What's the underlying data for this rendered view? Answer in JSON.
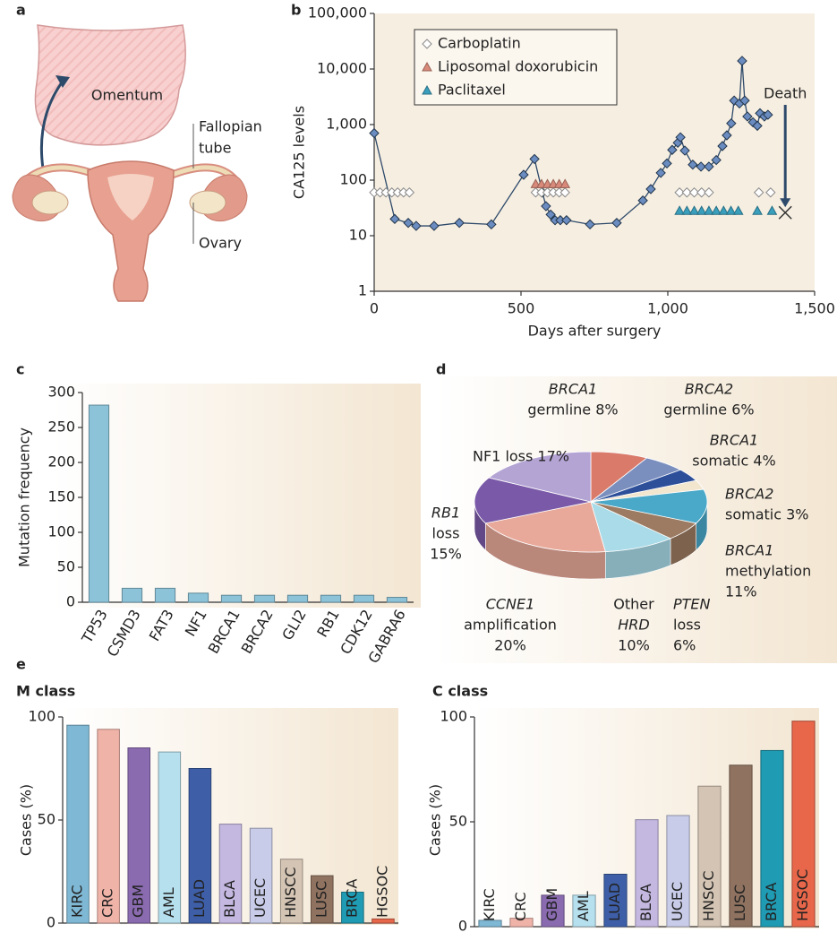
{
  "diagram": {
    "panel": "a",
    "omentum": "Omentum",
    "tube": [
      "Fallopian",
      "tube"
    ],
    "ovary": "Ovary"
  },
  "chart_data": [
    {
      "type": "line",
      "panel": "b",
      "log_y": true,
      "xlabel": "Days after surgery",
      "ylabel": "CA125 levels",
      "xlim": [
        0,
        1500
      ],
      "xticks": [
        0,
        500,
        {
          "value": 1000,
          "label": "1,000"
        },
        {
          "value": 1500,
          "label": "1,500"
        }
      ],
      "ylim": [
        1,
        100000
      ],
      "yticks": [
        1,
        10,
        100,
        {
          "value": 1000,
          "label": "1,000"
        },
        {
          "value": 10000,
          "label": "10,000"
        },
        {
          "value": 100000,
          "label": "100,000"
        }
      ],
      "legend": "upper left",
      "series": [
        {
          "color": "#2e4a6a",
          "marker": "diamond",
          "marker_color": "#6b8cc0",
          "x": [
            0,
            70,
            116,
            143,
            204,
            290,
            399,
            509,
            546,
            573,
            585,
            601,
            616,
            634,
            655,
            735,
            826,
            915,
            942,
            976,
            997,
            1015,
            1034,
            1043,
            1058,
            1085,
            1113,
            1140,
            1165,
            1186,
            1201,
            1216,
            1226,
            1244,
            1253,
            1262,
            1271,
            1290,
            1305,
            1314,
            1329,
            1341
          ],
          "values": [
            700,
            20,
            17,
            15,
            15,
            17,
            16,
            125,
            240,
            60,
            34,
            24,
            19,
            19,
            19,
            16,
            17,
            43,
            69,
            135,
            200,
            350,
            470,
            590,
            340,
            190,
            175,
            175,
            230,
            410,
            640,
            1050,
            2700,
            2400,
            14000,
            2700,
            1400,
            1100,
            950,
            1600,
            1400,
            1500
          ]
        },
        {
          "name": "Carboplatin",
          "mode": "markers",
          "marker": "diamond-open",
          "color": "#8a8a8a",
          "x": [
            0,
            20,
            40,
            60,
            80,
            100,
            120,
            550,
            570,
            590,
            610,
            630,
            650,
            1040,
            1065,
            1090,
            1115,
            1140,
            1310,
            1350
          ],
          "values": [
            60,
            60,
            60,
            60,
            60,
            60,
            60,
            60,
            60,
            60,
            60,
            60,
            60,
            60,
            60,
            60,
            60,
            60,
            60,
            60
          ]
        },
        {
          "name": "Liposomal doxorubicin",
          "mode": "markers",
          "marker": "triangle",
          "color": "#d98a7a",
          "x": [
            550,
            570,
            590,
            610,
            630,
            650
          ],
          "values": [
            85,
            85,
            85,
            85,
            85,
            85
          ]
        },
        {
          "name": "Paclitaxel",
          "mode": "markers",
          "marker": "triangle",
          "color": "#3a9fbd",
          "x": [
            1040,
            1065,
            1090,
            1115,
            1140,
            1165,
            1190,
            1215,
            1240,
            1305,
            1355
          ],
          "values": [
            28,
            28,
            28,
            28,
            28,
            28,
            28,
            28,
            28,
            28,
            28
          ]
        }
      ],
      "annotations": [
        {
          "text": "Death",
          "x": 1400,
          "y": 26
        }
      ]
    },
    {
      "type": "bar",
      "panel": "c",
      "ylabel": "Mutation frequency",
      "categories": [
        "TP53",
        "CSMD3",
        "FAT3",
        "NF1",
        "BRCA1",
        "BRCA2",
        "GLI2",
        "RB1",
        "CDK12",
        "GABRA6"
      ],
      "values": [
        282,
        20,
        20,
        13,
        10,
        10,
        10,
        10,
        10,
        7
      ],
      "color": "#8cc3d8",
      "ylim": [
        0,
        300
      ],
      "yticks": [
        0,
        50,
        100,
        150,
        200,
        250,
        300
      ],
      "label_position": "below"
    },
    {
      "type": "pie",
      "panel": "d",
      "label_lines": [
        [
          "BRCA1",
          "germline 8%"
        ],
        [
          "BRCA2",
          "germline 6%"
        ],
        [
          "BRCA1",
          "somatic 4%"
        ],
        [
          "BRCA2",
          "somatic 3%"
        ],
        [
          "BRCA1",
          "methylation",
          "11%"
        ],
        [
          "PTEN",
          "loss",
          "6%"
        ],
        [
          "Other",
          "HRD",
          "10%"
        ],
        [
          "CCNE1",
          "amplification",
          "20%"
        ],
        [
          "RB1",
          "loss",
          "15%"
        ],
        [
          "NF1 loss 17%"
        ]
      ],
      "values": [
        8,
        6,
        4,
        3,
        11,
        6,
        10,
        20,
        15,
        17
      ],
      "colors": [
        "#d97a6a",
        "#7b8fbf",
        "#2d4f9a",
        "#f3e6cf",
        "#4aa8c8",
        "#9c7b62",
        "#a9dbe8",
        "#e8a99a",
        "#7a5aa8",
        "#b4a4d4"
      ]
    },
    {
      "type": "bar",
      "panel": "e",
      "title": "M class",
      "ylabel": "Cases (%)",
      "categories": [
        "KIRC",
        "CRC",
        "GBM",
        "AML",
        "LUAD",
        "BLCA",
        "UCEC",
        "HNSCC",
        "LUSC",
        "BRCA",
        "HGSOC"
      ],
      "values": [
        96,
        94,
        85,
        83,
        75,
        48,
        46,
        31,
        23,
        15,
        2
      ],
      "colors": [
        "#7fb8d4",
        "#f0b3a8",
        "#8a6bb0",
        "#b7e0ee",
        "#3e5fa8",
        "#c4b8e0",
        "#c8cce8",
        "#d4c4b4",
        "#8f7260",
        "#1f9bb3",
        "#e8674a"
      ],
      "ylim": [
        0,
        100
      ],
      "yticks": [
        0,
        50,
        100
      ],
      "label_position": "inside"
    },
    {
      "type": "bar",
      "title": "C class",
      "ylabel": "Cases (%)",
      "categories": [
        "KIRC",
        "CRC",
        "GBM",
        "AML",
        "LUAD",
        "BLCA",
        "UCEC",
        "HNSCC",
        "LUSC",
        "BRCA",
        "HGSOC"
      ],
      "values": [
        3,
        4,
        15,
        15,
        25,
        51,
        53,
        67,
        77,
        84,
        98
      ],
      "colors": [
        "#7fb8d4",
        "#f0b3a8",
        "#8a6bb0",
        "#b7e0ee",
        "#3e5fa8",
        "#c4b8e0",
        "#c8cce8",
        "#d4c4b4",
        "#8f7260",
        "#1f9bb3",
        "#e8674a"
      ],
      "ylim": [
        0,
        100
      ],
      "yticks": [
        0,
        50,
        100
      ],
      "label_position": "inside"
    }
  ]
}
